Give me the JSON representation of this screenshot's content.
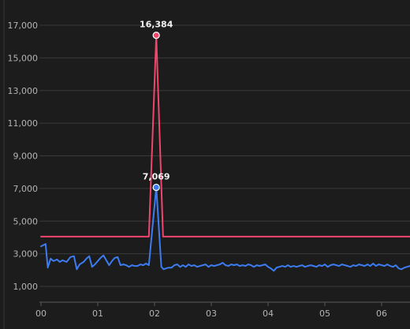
{
  "chart_data": {
    "type": "line",
    "title": "",
    "xlabel": "",
    "ylabel": "",
    "grid": true,
    "legend": "none",
    "y_ticks": [
      1000,
      3000,
      5000,
      7000,
      9000,
      11000,
      13000,
      15000,
      17000
    ],
    "y_tick_labels": [
      "1,000",
      "3,000",
      "5,000",
      "7,000",
      "9,000",
      "11,000",
      "13,000",
      "15,000",
      "17,000"
    ],
    "ylim": [
      0,
      17500
    ],
    "x_ticks": [
      0,
      1,
      2,
      3,
      4,
      5,
      6
    ],
    "x_tick_labels": [
      "00",
      "01",
      "02",
      "03",
      "04",
      "05",
      "06"
    ],
    "xlim": [
      0,
      6.55
    ],
    "series": [
      {
        "color": "#f0466e",
        "points": [
          [
            0,
            4050
          ],
          [
            1.9,
            4050
          ],
          [
            2.03,
            16384
          ],
          [
            2.15,
            4050
          ],
          [
            6.55,
            4050
          ]
        ]
      },
      {
        "color": "#3d7cf0",
        "points": [
          [
            0,
            3450
          ],
          [
            0.08,
            3600
          ],
          [
            0.12,
            2150
          ],
          [
            0.17,
            2700
          ],
          [
            0.22,
            2550
          ],
          [
            0.28,
            2650
          ],
          [
            0.33,
            2500
          ],
          [
            0.38,
            2600
          ],
          [
            0.45,
            2500
          ],
          [
            0.52,
            2800
          ],
          [
            0.58,
            2850
          ],
          [
            0.63,
            2050
          ],
          [
            0.68,
            2350
          ],
          [
            0.75,
            2500
          ],
          [
            0.8,
            2700
          ],
          [
            0.85,
            2850
          ],
          [
            0.9,
            2200
          ],
          [
            0.95,
            2350
          ],
          [
            1.0,
            2550
          ],
          [
            1.05,
            2750
          ],
          [
            1.1,
            2900
          ],
          [
            1.15,
            2600
          ],
          [
            1.2,
            2300
          ],
          [
            1.25,
            2550
          ],
          [
            1.3,
            2750
          ],
          [
            1.35,
            2800
          ],
          [
            1.4,
            2300
          ],
          [
            1.45,
            2350
          ],
          [
            1.5,
            2300
          ],
          [
            1.55,
            2200
          ],
          [
            1.6,
            2300
          ],
          [
            1.65,
            2250
          ],
          [
            1.7,
            2250
          ],
          [
            1.75,
            2350
          ],
          [
            1.8,
            2300
          ],
          [
            1.85,
            2400
          ],
          [
            1.9,
            2300
          ],
          [
            2.03,
            7069
          ],
          [
            2.12,
            2200
          ],
          [
            2.16,
            2050
          ],
          [
            2.2,
            2100
          ],
          [
            2.25,
            2150
          ],
          [
            2.3,
            2150
          ],
          [
            2.35,
            2300
          ],
          [
            2.4,
            2350
          ],
          [
            2.45,
            2200
          ],
          [
            2.5,
            2300
          ],
          [
            2.55,
            2200
          ],
          [
            2.6,
            2350
          ],
          [
            2.65,
            2250
          ],
          [
            2.7,
            2300
          ],
          [
            2.75,
            2200
          ],
          [
            2.8,
            2250
          ],
          [
            2.85,
            2300
          ],
          [
            2.9,
            2350
          ],
          [
            2.95,
            2200
          ],
          [
            3.0,
            2300
          ],
          [
            3.05,
            2250
          ],
          [
            3.1,
            2300
          ],
          [
            3.15,
            2350
          ],
          [
            3.2,
            2450
          ],
          [
            3.25,
            2300
          ],
          [
            3.3,
            2250
          ],
          [
            3.35,
            2350
          ],
          [
            3.4,
            2300
          ],
          [
            3.45,
            2350
          ],
          [
            3.5,
            2250
          ],
          [
            3.55,
            2300
          ],
          [
            3.6,
            2250
          ],
          [
            3.65,
            2350
          ],
          [
            3.7,
            2300
          ],
          [
            3.75,
            2200
          ],
          [
            3.8,
            2300
          ],
          [
            3.85,
            2250
          ],
          [
            3.9,
            2300
          ],
          [
            3.95,
            2350
          ],
          [
            4.0,
            2200
          ],
          [
            4.05,
            2100
          ],
          [
            4.1,
            1950
          ],
          [
            4.15,
            2150
          ],
          [
            4.2,
            2200
          ],
          [
            4.25,
            2250
          ],
          [
            4.3,
            2200
          ],
          [
            4.35,
            2300
          ],
          [
            4.4,
            2200
          ],
          [
            4.45,
            2250
          ],
          [
            4.5,
            2200
          ],
          [
            4.55,
            2250
          ],
          [
            4.6,
            2300
          ],
          [
            4.65,
            2200
          ],
          [
            4.7,
            2250
          ],
          [
            4.75,
            2300
          ],
          [
            4.8,
            2250
          ],
          [
            4.85,
            2200
          ],
          [
            4.9,
            2300
          ],
          [
            4.95,
            2250
          ],
          [
            5.0,
            2350
          ],
          [
            5.05,
            2200
          ],
          [
            5.1,
            2300
          ],
          [
            5.15,
            2350
          ],
          [
            5.2,
            2300
          ],
          [
            5.25,
            2250
          ],
          [
            5.3,
            2350
          ],
          [
            5.35,
            2300
          ],
          [
            5.4,
            2250
          ],
          [
            5.45,
            2200
          ],
          [
            5.5,
            2300
          ],
          [
            5.55,
            2250
          ],
          [
            5.6,
            2350
          ],
          [
            5.65,
            2300
          ],
          [
            5.7,
            2250
          ],
          [
            5.75,
            2350
          ],
          [
            5.8,
            2250
          ],
          [
            5.85,
            2400
          ],
          [
            5.9,
            2250
          ],
          [
            5.95,
            2350
          ],
          [
            6.0,
            2300
          ],
          [
            6.05,
            2250
          ],
          [
            6.1,
            2350
          ],
          [
            6.15,
            2250
          ],
          [
            6.2,
            2200
          ],
          [
            6.25,
            2300
          ],
          [
            6.3,
            2100
          ],
          [
            6.35,
            2050
          ],
          [
            6.4,
            2150
          ],
          [
            6.45,
            2200
          ],
          [
            6.5,
            2250
          ],
          [
            6.55,
            2300
          ]
        ]
      }
    ],
    "annotations": [
      {
        "label": "16,384",
        "x": 2.03,
        "y": 16384,
        "color": "#f0466e"
      },
      {
        "label": "7,069",
        "x": 2.03,
        "y": 7069,
        "color": "#3d7cf0"
      }
    ]
  }
}
